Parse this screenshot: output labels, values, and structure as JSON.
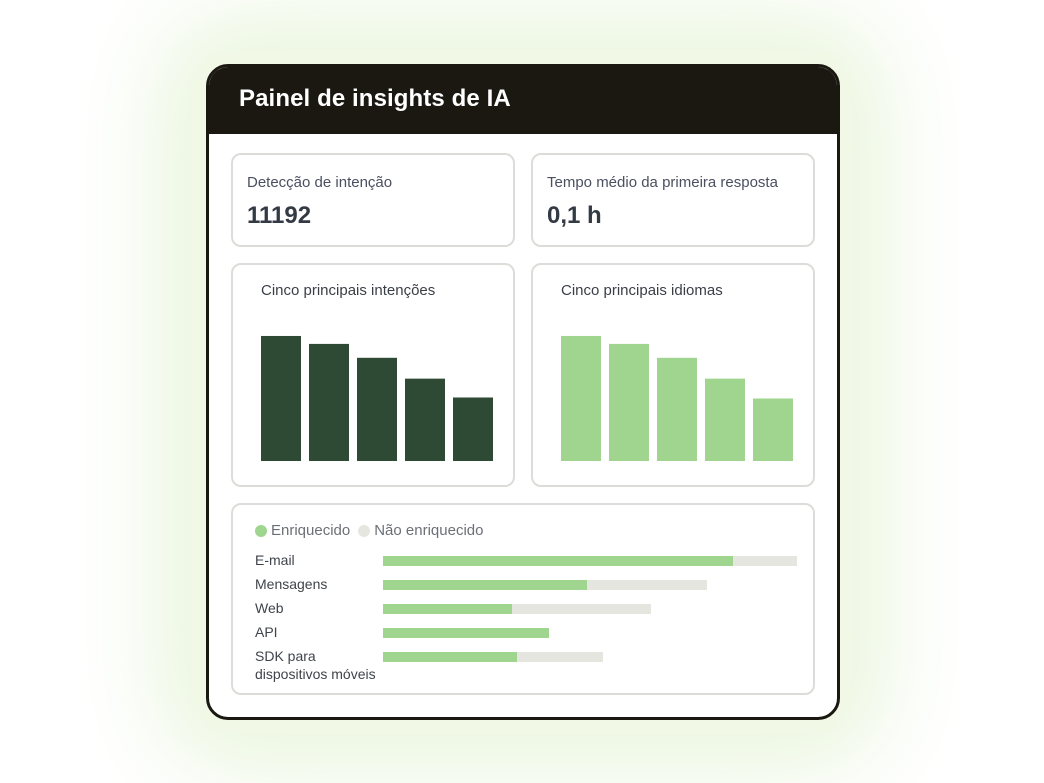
{
  "panel": {
    "title": "Painel de insights de IA"
  },
  "stats": [
    {
      "label": "Detecção de intenção",
      "value": "11192"
    },
    {
      "label": "Tempo médio da primeira resposta",
      "value": "0,1 h"
    }
  ],
  "colors": {
    "header": "#1b1812",
    "dark_green": "#2e4a34",
    "light_green": "#9fd58e",
    "track_gray": "#e6e6e1"
  },
  "chart_data": [
    {
      "type": "bar",
      "title": "Cinco principais intenções",
      "categories": [
        "",
        "",
        "",
        "",
        ""
      ],
      "values": [
        126,
        118,
        104,
        83,
        64
      ],
      "ylim": [
        0,
        130
      ],
      "color": "#2e4a34",
      "grid": false
    },
    {
      "type": "bar",
      "title": "Cinco principais idiomas",
      "categories": [
        "",
        "",
        "",
        "",
        ""
      ],
      "values": [
        126,
        118,
        104,
        83,
        63
      ],
      "ylim": [
        0,
        130
      ],
      "color": "#9fd58e",
      "grid": false
    },
    {
      "type": "bar",
      "orientation": "horizontal",
      "stacked": true,
      "legend": "top-left",
      "series": [
        {
          "name": "Enriquecido",
          "color": "#9fd58e",
          "values": [
            350,
            204,
            129,
            166,
            134
          ]
        },
        {
          "name": "Não enriquecido",
          "color": "#e6e6e1",
          "values": [
            64,
            120,
            139,
            0,
            86
          ]
        }
      ],
      "categories": [
        "E-mail",
        "Mensagens",
        "Web",
        "API",
        "SDK para dispositivos móveis"
      ]
    }
  ]
}
